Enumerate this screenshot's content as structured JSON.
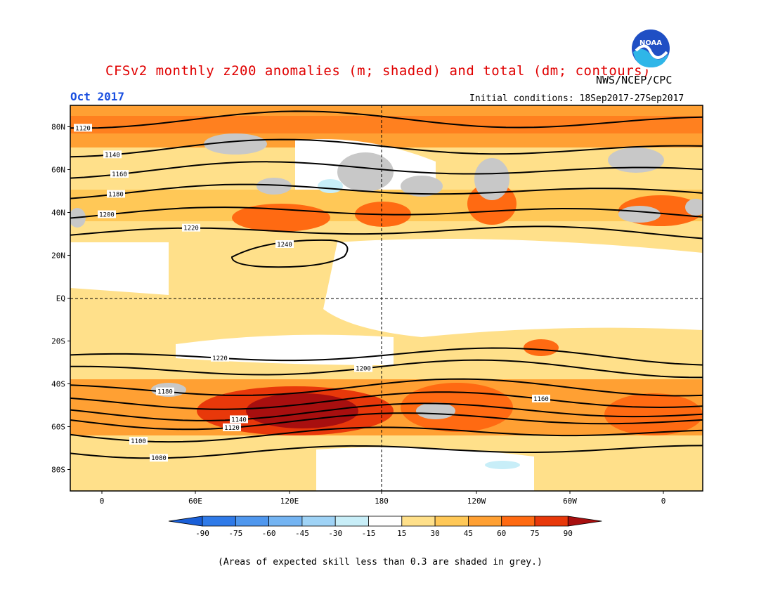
{
  "header": {
    "title": "CFSv2 monthly z200 anomalies (m; shaded) and total (dm; contours)",
    "agency": "NWS/NCEP/CPC",
    "month": "Oct 2017",
    "initial_conditions": "Initial conditions: 18Sep2017-27Sep2017",
    "logo_text": "NOAA"
  },
  "map": {
    "lat_labels": [
      "80N",
      "60N",
      "40N",
      "20N",
      "EQ",
      "20S",
      "40S",
      "60S",
      "80S"
    ],
    "lon_labels": [
      "0",
      "60E",
      "120E",
      "180",
      "120W",
      "60W",
      "0"
    ],
    "contours": [
      {
        "value": "1120",
        "label_lat": 83
      },
      {
        "value": "1140",
        "label_lat": 70
      },
      {
        "value": "1160",
        "label_lat": 60
      },
      {
        "value": "1180",
        "label_lat": 50
      },
      {
        "value": "1200",
        "label_lat": 40
      },
      {
        "value": "1220",
        "label_lat": 31
      },
      {
        "value": "1240",
        "label_lat": 24
      },
      {
        "value": "1220",
        "label_lat": -27
      },
      {
        "value": "1200",
        "label_lat": -33
      },
      {
        "value": "1180",
        "label_lat": -42
      },
      {
        "value": "1160",
        "label_lat": -48
      },
      {
        "value": "1140",
        "label_lat": -53
      },
      {
        "value": "1120",
        "label_lat": -57
      },
      {
        "value": "1100",
        "label_lat": -63
      },
      {
        "value": "1080",
        "label_lat": -71
      }
    ],
    "contour_unit": "dm",
    "anomaly_unit": "m"
  },
  "colorbar": {
    "ticks": [
      "-90",
      "-75",
      "-60",
      "-45",
      "-30",
      "-15",
      "15",
      "30",
      "45",
      "60",
      "75",
      "90"
    ],
    "colors": [
      "#1a5fd8",
      "#2f7ae8",
      "#4f97ee",
      "#74b4f2",
      "#9fd3f6",
      "#c8eef8",
      "#ffffff",
      "#ffe08a",
      "#ffc857",
      "#ffa033",
      "#ff6a12",
      "#e8380a",
      "#a80f0f"
    ]
  },
  "footnote": "(Areas of expected skill less than 0.3 are shaded in grey.)"
}
